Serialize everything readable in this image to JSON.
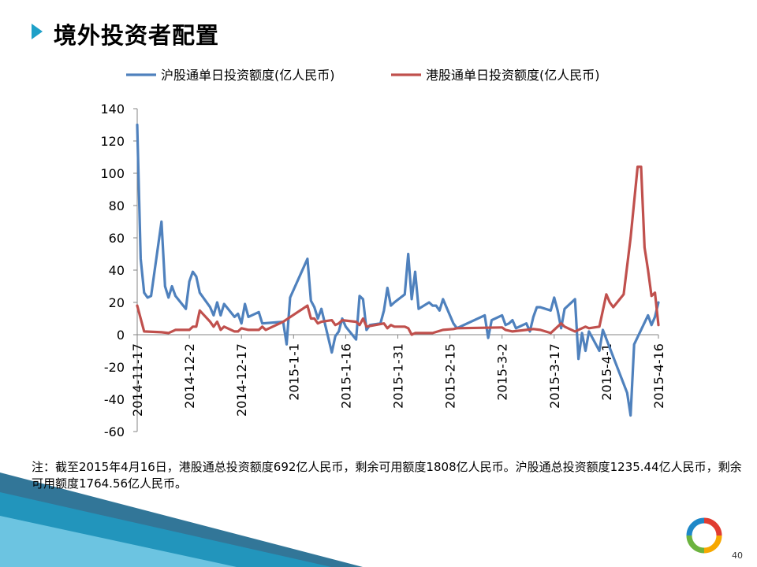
{
  "slide": {
    "title": "境外投资者配置",
    "note": "注：截至2015年4月16日，港股通总投资额度692亿人民币，剩余可用额度1808亿人民币。沪股通总投资额度1235.44亿人民币，剩余可用额度1764.56亿人民币。",
    "page_number": "40"
  },
  "colors": {
    "series1": "#4f81bd",
    "series2": "#c0504d",
    "accent": "#1ea0c8",
    "corner_dark": "#0e5e86"
  },
  "chart_data": {
    "type": "line",
    "title": "",
    "xlabel": "",
    "ylabel": "",
    "ylim": [
      -60,
      140
    ],
    "yticks": [
      "140",
      "120",
      "100",
      "80",
      "60",
      "40",
      "20",
      "0",
      "-20",
      "-40",
      "-60"
    ],
    "xticks": [
      "2014-11-17",
      "2014-12-2",
      "2014-12-17",
      "2015-1-1",
      "2015-1-16",
      "2015-1-31",
      "2015-2-15",
      "2015-3-2",
      "2015-3-17",
      "2015-4-1",
      "2015-4-16"
    ],
    "xlim": [
      "2014-11-17",
      "2015-4-16"
    ],
    "grid": false,
    "legend": "top",
    "series": [
      {
        "name": "沪股通单日投资额度(亿人民币)",
        "color": "#4f81bd",
        "points": [
          [
            "2014-11-17",
            130
          ],
          [
            "2014-11-18",
            47
          ],
          [
            "2014-11-19",
            26
          ],
          [
            "2014-11-20",
            23
          ],
          [
            "2014-11-21",
            24
          ],
          [
            "2014-11-24",
            70
          ],
          [
            "2014-11-25",
            30
          ],
          [
            "2014-11-26",
            23
          ],
          [
            "2014-11-27",
            30
          ],
          [
            "2014-11-28",
            24
          ],
          [
            "2014-12-1",
            16
          ],
          [
            "2014-12-2",
            33
          ],
          [
            "2014-12-3",
            39
          ],
          [
            "2014-12-4",
            36
          ],
          [
            "2014-12-5",
            26
          ],
          [
            "2014-12-8",
            17
          ],
          [
            "2014-12-9",
            12
          ],
          [
            "2014-12-10",
            20
          ],
          [
            "2014-12-11",
            12
          ],
          [
            "2014-12-12",
            19
          ],
          [
            "2014-12-15",
            11
          ],
          [
            "2014-12-16",
            13
          ],
          [
            "2014-12-17",
            7
          ],
          [
            "2014-12-18",
            19
          ],
          [
            "2014-12-19",
            11
          ],
          [
            "2014-12-22",
            14
          ],
          [
            "2014-12-23",
            7
          ],
          [
            "2014-12-29",
            8
          ],
          [
            "2014-12-30",
            -6
          ],
          [
            "2014-12-31",
            23
          ],
          [
            "2015-1-5",
            47
          ],
          [
            "2015-1-6",
            21
          ],
          [
            "2015-1-7",
            17
          ],
          [
            "2015-1-8",
            10
          ],
          [
            "2015-1-9",
            16
          ],
          [
            "2015-1-12",
            -11
          ],
          [
            "2015-1-13",
            -1
          ],
          [
            "2015-1-14",
            2
          ],
          [
            "2015-1-15",
            10
          ],
          [
            "2015-1-16",
            5
          ],
          [
            "2015-1-19",
            -3
          ],
          [
            "2015-1-20",
            24
          ],
          [
            "2015-1-21",
            22
          ],
          [
            "2015-1-22",
            3
          ],
          [
            "2015-1-23",
            6
          ],
          [
            "2015-1-26",
            7
          ],
          [
            "2015-1-27",
            15
          ],
          [
            "2015-1-28",
            29
          ],
          [
            "2015-1-29",
            18
          ],
          [
            "2015-1-30",
            20
          ],
          [
            "2015-2-2",
            25
          ],
          [
            "2015-2-3",
            50
          ],
          [
            "2015-2-4",
            22
          ],
          [
            "2015-2-5",
            39
          ],
          [
            "2015-2-6",
            16
          ],
          [
            "2015-2-9",
            20
          ],
          [
            "2015-2-10",
            18
          ],
          [
            "2015-2-11",
            18
          ],
          [
            "2015-2-12",
            15
          ],
          [
            "2015-2-13",
            22
          ],
          [
            "2015-2-16",
            7
          ],
          [
            "2015-2-17",
            4
          ],
          [
            "2015-2-25",
            12
          ],
          [
            "2015-2-26",
            -2
          ],
          [
            "2015-2-27",
            9
          ],
          [
            "2015-3-2",
            12
          ],
          [
            "2015-3-3",
            6
          ],
          [
            "2015-3-4",
            7
          ],
          [
            "2015-3-5",
            9
          ],
          [
            "2015-3-6",
            4
          ],
          [
            "2015-3-9",
            7
          ],
          [
            "2015-3-10",
            2
          ],
          [
            "2015-3-11",
            11
          ],
          [
            "2015-3-12",
            17
          ],
          [
            "2015-3-13",
            17
          ],
          [
            "2015-3-16",
            15
          ],
          [
            "2015-3-17",
            23
          ],
          [
            "2015-3-18",
            15
          ],
          [
            "2015-3-19",
            4
          ],
          [
            "2015-3-20",
            16
          ],
          [
            "2015-3-23",
            22
          ],
          [
            "2015-3-24",
            -15
          ],
          [
            "2015-3-25",
            1
          ],
          [
            "2015-3-26",
            -10
          ],
          [
            "2015-3-27",
            2
          ],
          [
            "2015-3-30",
            -10
          ],
          [
            "2015-3-31",
            3
          ],
          [
            "2015-4-7",
            -36
          ],
          [
            "2015-4-8",
            -50
          ],
          [
            "2015-4-9",
            -6
          ],
          [
            "2015-4-13",
            12
          ],
          [
            "2015-4-14",
            6
          ],
          [
            "2015-4-15",
            11
          ],
          [
            "2015-4-16",
            20
          ]
        ]
      },
      {
        "name": "港股通单日投资额度(亿人民币)",
        "color": "#c0504d",
        "points": [
          [
            "2014-11-17",
            18
          ],
          [
            "2014-11-18",
            10
          ],
          [
            "2014-11-19",
            2
          ],
          [
            "2014-11-24",
            1.5
          ],
          [
            "2014-11-26",
            1
          ],
          [
            "2014-11-27",
            2
          ],
          [
            "2014-11-28",
            3
          ],
          [
            "2014-12-2",
            3
          ],
          [
            "2014-12-3",
            5
          ],
          [
            "2014-12-4",
            5
          ],
          [
            "2014-12-5",
            15
          ],
          [
            "2014-12-8",
            8
          ],
          [
            "2014-12-9",
            5
          ],
          [
            "2014-12-10",
            8
          ],
          [
            "2014-12-11",
            3
          ],
          [
            "2014-12-12",
            5
          ],
          [
            "2014-12-15",
            2
          ],
          [
            "2014-12-16",
            2
          ],
          [
            "2014-12-17",
            4
          ],
          [
            "2014-12-19",
            3
          ],
          [
            "2014-12-22",
            3
          ],
          [
            "2014-12-23",
            5
          ],
          [
            "2014-12-24",
            3
          ],
          [
            "2014-12-29",
            8
          ],
          [
            "2015-1-5",
            18
          ],
          [
            "2015-1-6",
            10
          ],
          [
            "2015-1-7",
            10
          ],
          [
            "2015-1-8",
            7
          ],
          [
            "2015-1-9",
            8
          ],
          [
            "2015-1-12",
            9
          ],
          [
            "2015-1-13",
            6
          ],
          [
            "2015-1-14",
            7
          ],
          [
            "2015-1-15",
            9
          ],
          [
            "2015-1-19",
            8
          ],
          [
            "2015-1-20",
            6
          ],
          [
            "2015-1-21",
            10
          ],
          [
            "2015-1-22",
            5
          ],
          [
            "2015-1-27",
            7
          ],
          [
            "2015-1-28",
            4
          ],
          [
            "2015-1-29",
            6
          ],
          [
            "2015-1-30",
            5
          ],
          [
            "2015-2-2",
            5
          ],
          [
            "2015-2-3",
            4
          ],
          [
            "2015-2-4",
            0
          ],
          [
            "2015-2-5",
            1
          ],
          [
            "2015-2-10",
            1
          ],
          [
            "2015-2-13",
            3
          ],
          [
            "2015-2-16",
            3.5
          ],
          [
            "2015-2-17",
            4
          ],
          [
            "2015-3-2",
            4.5
          ],
          [
            "2015-3-3",
            3
          ],
          [
            "2015-3-5",
            2
          ],
          [
            "2015-3-9",
            3
          ],
          [
            "2015-3-11",
            3.5
          ],
          [
            "2015-3-13",
            3
          ],
          [
            "2015-3-16",
            1
          ],
          [
            "2015-3-19",
            7
          ],
          [
            "2015-3-20",
            5
          ],
          [
            "2015-3-23",
            2
          ],
          [
            "2015-3-26",
            5
          ],
          [
            "2015-3-27",
            4
          ],
          [
            "2015-3-30",
            5
          ],
          [
            "2015-4-1",
            25
          ],
          [
            "2015-4-2",
            20
          ],
          [
            "2015-4-3",
            17
          ],
          [
            "2015-4-6",
            25
          ],
          [
            "2015-4-8",
            60
          ],
          [
            "2015-4-10",
            104
          ],
          [
            "2015-4-11",
            104
          ],
          [
            "2015-4-12",
            54
          ],
          [
            "2015-4-13",
            40
          ],
          [
            "2015-4-14",
            24
          ],
          [
            "2015-4-15",
            26
          ],
          [
            "2015-4-16",
            6
          ]
        ]
      }
    ]
  }
}
